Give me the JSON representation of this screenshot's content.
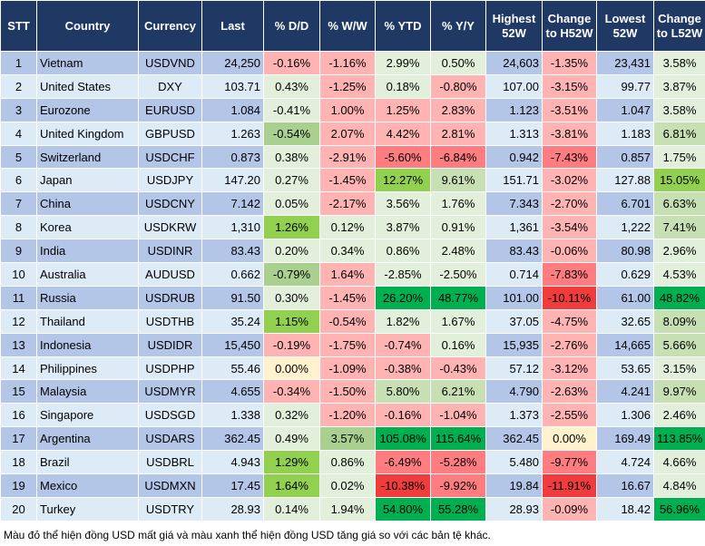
{
  "headers": [
    "STT",
    "Country",
    "Currency",
    "Last",
    "% D/D",
    "% W/W",
    "% YTD",
    "% Y/Y",
    "Highest 52W",
    "Change to H52W",
    "Lowest 52W",
    "Change to L52W"
  ],
  "rows": [
    {
      "cells": [
        "1",
        "Vietnam",
        "USDVND",
        "24,250",
        "-0.16%",
        "-1.16%",
        "2.99%",
        "0.50%",
        "24,603",
        "-1.35%",
        "23,431",
        "3.58%"
      ],
      "colors": [
        "lr",
        "lr",
        "lg",
        "lg",
        "lr",
        "lg"
      ]
    },
    {
      "cells": [
        "2",
        "United States",
        "DXY",
        "103.71",
        "0.43%",
        "-1.25%",
        "0.18%",
        "-0.80%",
        "107.00",
        "-3.15%",
        "99.77",
        "3.87%"
      ],
      "colors": [
        "lg",
        "lr",
        "lg",
        "lr",
        "lr",
        "lg"
      ]
    },
    {
      "cells": [
        "3",
        "Eurozone",
        "EURUSD",
        "1.084",
        "-0.41%",
        "1.00%",
        "1.25%",
        "2.83%",
        "1.123",
        "-3.51%",
        "1.047",
        "3.58%"
      ],
      "colors": [
        "lg",
        "lr",
        "lr",
        "lr",
        "lr",
        "lg"
      ]
    },
    {
      "cells": [
        "4",
        "United Kingdom",
        "GBPUSD",
        "1.263",
        "-0.54%",
        "2.07%",
        "4.42%",
        "2.81%",
        "1.313",
        "-3.81%",
        "1.183",
        "6.81%"
      ],
      "colors": [
        "M",
        "lr",
        "lr",
        "lr",
        "lr",
        "m"
      ]
    },
    {
      "cells": [
        "5",
        "Switzerland",
        "USDCHF",
        "0.873",
        "0.38%",
        "-2.91%",
        "-5.60%",
        "-6.84%",
        "0.942",
        "-7.43%",
        "0.857",
        "1.75%"
      ],
      "colors": [
        "lg",
        "lr",
        "rd",
        "rd",
        "rd",
        "lg"
      ]
    },
    {
      "cells": [
        "6",
        "Japan",
        "USDJPY",
        "147.20",
        "0.27%",
        "-1.45%",
        "12.27%",
        "9.61%",
        "151.71",
        "-3.02%",
        "127.88",
        "15.05%"
      ],
      "colors": [
        "lg",
        "lr",
        "g",
        "m",
        "lr",
        "g"
      ]
    },
    {
      "cells": [
        "7",
        "China",
        "USDCNY",
        "7.142",
        "0.05%",
        "-2.17%",
        "3.56%",
        "1.76%",
        "7.343",
        "-2.70%",
        "6.701",
        "6.63%"
      ],
      "colors": [
        "lg",
        "lr",
        "lg",
        "lg",
        "lr",
        "m"
      ]
    },
    {
      "cells": [
        "8",
        "Korea",
        "USDKRW",
        "1,310",
        "1.26%",
        "0.12%",
        "3.87%",
        "0.91%",
        "1,361",
        "-3.54%",
        "1,222",
        "7.41%"
      ],
      "colors": [
        "g",
        "lg",
        "lg",
        "lg",
        "lr",
        "m"
      ]
    },
    {
      "cells": [
        "9",
        "India",
        "USDINR",
        "83.43",
        "0.20%",
        "0.34%",
        "0.86%",
        "2.48%",
        "83.43",
        "-0.06%",
        "80.98",
        "2.96%"
      ],
      "colors": [
        "lg",
        "lg",
        "lg",
        "lg",
        "lr",
        "lg"
      ]
    },
    {
      "cells": [
        "10",
        "Australia",
        "AUDUSD",
        "0.662",
        "-0.79%",
        "1.64%",
        "-2.85%",
        "-2.50%",
        "0.714",
        "-7.83%",
        "0.629",
        "4.53%"
      ],
      "colors": [
        "M",
        "lr",
        "lg",
        "lg",
        "rd",
        "lg"
      ]
    },
    {
      "cells": [
        "11",
        "Russia",
        "USDRUB",
        "91.50",
        "0.30%",
        "-1.45%",
        "26.20%",
        "48.77%",
        "101.00",
        "-10.11%",
        "61.00",
        "48.82%"
      ],
      "colors": [
        "lg",
        "lr",
        "dg",
        "dg",
        "dr",
        "dg"
      ]
    },
    {
      "cells": [
        "12",
        "Thailand",
        "USDTHB",
        "35.24",
        "1.15%",
        "-0.54%",
        "1.82%",
        "1.67%",
        "37.05",
        "-4.75%",
        "32.65",
        "8.09%"
      ],
      "colors": [
        "g",
        "lr",
        "lg",
        "lg",
        "lr",
        "m"
      ]
    },
    {
      "cells": [
        "13",
        "Indonesia",
        "USDIDR",
        "15,450",
        "-0.19%",
        "-1.75%",
        "-0.74%",
        "0.16%",
        "15,935",
        "-2.76%",
        "14,665",
        "5.66%"
      ],
      "colors": [
        "lr",
        "lr",
        "lr",
        "lg",
        "lr",
        "m"
      ]
    },
    {
      "cells": [
        "14",
        "Philippines",
        "USDPHP",
        "55.46",
        "0.00%",
        "-1.09%",
        "-0.38%",
        "-0.43%",
        "57.12",
        "-3.12%",
        "53.65",
        "3.15%"
      ],
      "colors": [
        "y",
        "lr",
        "lr",
        "lr",
        "lr",
        "lg"
      ]
    },
    {
      "cells": [
        "15",
        "Malaysia",
        "USDMYR",
        "4.655",
        "-0.34%",
        "-1.50%",
        "5.80%",
        "6.21%",
        "4.790",
        "-2.63%",
        "4.241",
        "9.97%"
      ],
      "colors": [
        "lr",
        "lr",
        "m",
        "m",
        "lr",
        "m"
      ]
    },
    {
      "cells": [
        "16",
        "Singapore",
        "USDSGD",
        "1.338",
        "0.32%",
        "-1.20%",
        "-0.16%",
        "-1.04%",
        "1.373",
        "-2.55%",
        "1.306",
        "2.46%"
      ],
      "colors": [
        "lg",
        "lr",
        "lr",
        "lr",
        "lr",
        "lg"
      ]
    },
    {
      "cells": [
        "17",
        "Argentina",
        "USDARS",
        "362.45",
        "0.49%",
        "3.57%",
        "105.08%",
        "115.64%",
        "362.45",
        "0.00%",
        "169.49",
        "113.85%"
      ],
      "colors": [
        "lg",
        "M",
        "dg",
        "dg",
        "y",
        "dg"
      ]
    },
    {
      "cells": [
        "18",
        "Brazil",
        "USDBRL",
        "4.943",
        "1.29%",
        "0.86%",
        "-6.49%",
        "-5.28%",
        "5.480",
        "-9.77%",
        "4.724",
        "4.66%"
      ],
      "colors": [
        "g",
        "lg",
        "rd",
        "rd",
        "rd",
        "lg"
      ]
    },
    {
      "cells": [
        "19",
        "Mexico",
        "USDMXN",
        "17.45",
        "1.64%",
        "0.02%",
        "-10.38%",
        "-9.92%",
        "19.84",
        "-11.91%",
        "16.67",
        "4.84%"
      ],
      "colors": [
        "g",
        "lg",
        "dr",
        "rd",
        "dr",
        "lg"
      ]
    },
    {
      "cells": [
        "20",
        "Turkey",
        "USDTRY",
        "28.93",
        "0.14%",
        "1.94%",
        "54.80%",
        "55.28%",
        "28.93",
        "-0.09%",
        "18.42",
        "56.96%"
      ],
      "colors": [
        "lg",
        "lg",
        "dg",
        "dg",
        "lr",
        "dg"
      ]
    }
  ],
  "footnote": "Màu đỏ thể hiện đồng USD mất giá và màu xanh thể hiện đồng USD tăng giá so với các bản tệ khác."
}
